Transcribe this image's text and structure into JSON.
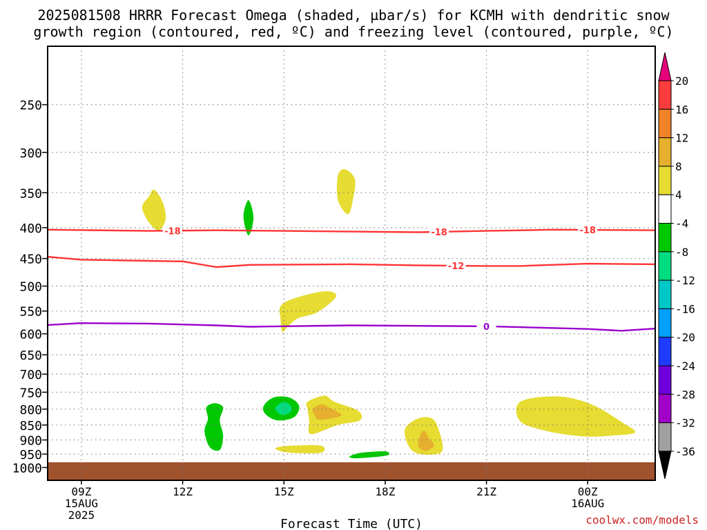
{
  "title_line1": "2025081508 HRRR Forecast Omega (shaded, µbar/s) for KCMH with dendritic snow",
  "title_line2": "growth region (contoured, red, ºC) and freezing level (contoured, purple, ºC)",
  "credit": "coolwx.com/models",
  "chart_data": {
    "type": "contour",
    "title": "2025081508 HRRR Forecast Omega (shaded, µbar/s) for KCMH with dendritic snow growth region (contoured, red, ºC) and freezing level (contoured, purple, ºC)",
    "xlabel": "Forecast Time (UTC)",
    "ylabel": "",
    "x_range_hours_from_09Z_15AUG": [
      -1.0,
      17.0
    ],
    "y_log_pressure": true,
    "y_range_hPa": [
      1050,
      200
    ],
    "y_ticks": [
      250,
      300,
      350,
      400,
      450,
      500,
      550,
      600,
      650,
      700,
      750,
      800,
      850,
      900,
      950,
      1000
    ],
    "x_ticks": [
      {
        "t": 0,
        "line1": "09Z",
        "line2": "15AUG",
        "line3": "2025"
      },
      {
        "t": 3,
        "line1": "12Z",
        "line2": "",
        "line3": ""
      },
      {
        "t": 6,
        "line1": "15Z",
        "line2": "",
        "line3": ""
      },
      {
        "t": 9,
        "line1": "18Z",
        "line2": "",
        "line3": ""
      },
      {
        "t": 12,
        "line1": "21Z",
        "line2": "",
        "line3": ""
      },
      {
        "t": 15,
        "line1": "00Z",
        "line2": "16AUG",
        "line3": ""
      }
    ],
    "grid": true,
    "ground_below_hPa": 980,
    "colorbar": {
      "levels": [
        -36,
        -32,
        -28,
        -24,
        -20,
        -16,
        -12,
        -8,
        -4,
        4,
        8,
        12,
        16,
        20
      ],
      "colors": [
        "#000000",
        "#a0a0a0",
        "#a000c8",
        "#6e00dc",
        "#1e3cff",
        "#00a0ff",
        "#00c8c8",
        "#00dc82",
        "#00c800",
        "#ffffff",
        "#e6dc32",
        "#e6af2d",
        "#f08228",
        "#fa3c3c",
        "#e6007a"
      ]
    },
    "contour_lines": [
      {
        "name": "-18",
        "color": "#ff3333",
        "label_at": [
          [
            2.7,
            -18
          ],
          [
            10.6,
            -18
          ],
          [
            15.0,
            -18
          ]
        ],
        "points": [
          [
            -1,
            403
          ],
          [
            2,
            405
          ],
          [
            4,
            404
          ],
          [
            6,
            405
          ],
          [
            8,
            406
          ],
          [
            10,
            407
          ],
          [
            12,
            405
          ],
          [
            14,
            403
          ],
          [
            17,
            404
          ]
        ]
      },
      {
        "name": "-12",
        "color": "#ff3333",
        "label_at": [
          [
            11.1,
            -12
          ]
        ],
        "points": [
          [
            -1,
            447
          ],
          [
            0,
            452
          ],
          [
            2,
            454
          ],
          [
            3,
            455
          ],
          [
            4,
            465
          ],
          [
            5,
            461
          ],
          [
            8,
            460
          ],
          [
            10,
            462
          ],
          [
            12,
            463
          ],
          [
            13,
            463
          ],
          [
            15,
            459
          ],
          [
            17,
            460
          ]
        ]
      },
      {
        "name": "0",
        "color": "#9900cc",
        "label_at": [
          [
            12.0,
            0
          ]
        ],
        "points": [
          [
            -1,
            580
          ],
          [
            0,
            576
          ],
          [
            2,
            577
          ],
          [
            4,
            581
          ],
          [
            5,
            584
          ],
          [
            6,
            583
          ],
          [
            8,
            581
          ],
          [
            10,
            582
          ],
          [
            12,
            583
          ],
          [
            15,
            589
          ],
          [
            16,
            593
          ],
          [
            17,
            588
          ]
        ]
      }
    ],
    "omega_regions": [
      {
        "value": 6,
        "points": [
          [
            2.0,
            355
          ],
          [
            1.8,
            370
          ],
          [
            2.0,
            392
          ],
          [
            2.3,
            404
          ],
          [
            2.5,
            386
          ],
          [
            2.4,
            362
          ],
          [
            2.15,
            346
          ]
        ]
      },
      {
        "value": -6,
        "points": [
          [
            4.95,
            360
          ],
          [
            4.8,
            383
          ],
          [
            4.95,
            412
          ],
          [
            5.1,
            385
          ]
        ]
      },
      {
        "value": 6,
        "points": [
          [
            7.6,
            328
          ],
          [
            7.8,
            320
          ],
          [
            8.1,
            332
          ],
          [
            8.05,
            358
          ],
          [
            7.9,
            380
          ],
          [
            7.6,
            360
          ]
        ]
      },
      {
        "value": 6,
        "points": [
          [
            5.9,
            540
          ],
          [
            6.3,
            524
          ],
          [
            7.2,
            510
          ],
          [
            7.55,
            520
          ],
          [
            7.0,
            552
          ],
          [
            6.4,
            566
          ],
          [
            6.1,
            585
          ],
          [
            5.95,
            595
          ],
          [
            5.9,
            565
          ]
        ]
      },
      {
        "value": 6,
        "points": [
          [
            5.8,
            926
          ],
          [
            6.2,
            920
          ],
          [
            7.1,
            920
          ],
          [
            7.1,
            945
          ],
          [
            6.2,
            945
          ],
          [
            5.8,
            935
          ]
        ]
      },
      {
        "value": -6,
        "points": [
          [
            3.7,
            795
          ],
          [
            3.95,
            782
          ],
          [
            4.2,
            795
          ],
          [
            4.1,
            835
          ],
          [
            4.2,
            885
          ],
          [
            4.1,
            935
          ],
          [
            3.8,
            925
          ],
          [
            3.65,
            870
          ],
          [
            3.75,
            830
          ]
        ]
      },
      {
        "value": -6,
        "points": [
          [
            5.4,
            790
          ],
          [
            5.7,
            765
          ],
          [
            6.15,
            765
          ],
          [
            6.45,
            790
          ],
          [
            6.3,
            825
          ],
          [
            5.8,
            835
          ],
          [
            5.45,
            815
          ]
        ]
      },
      {
        "value": -11,
        "points": [
          [
            5.8,
            790
          ],
          [
            6.0,
            778
          ],
          [
            6.2,
            790
          ],
          [
            6.2,
            808
          ],
          [
            5.95,
            818
          ],
          [
            5.75,
            802
          ]
        ]
      },
      {
        "value": 6,
        "points": [
          [
            6.7,
            778
          ],
          [
            7.2,
            760
          ],
          [
            7.5,
            778
          ],
          [
            8.2,
            805
          ],
          [
            8.25,
            835
          ],
          [
            7.6,
            850
          ],
          [
            6.8,
            880
          ],
          [
            6.75,
            835
          ],
          [
            6.7,
            800
          ]
        ]
      },
      {
        "value": 10,
        "points": [
          [
            6.85,
            800
          ],
          [
            7.1,
            785
          ],
          [
            7.3,
            793
          ],
          [
            7.7,
            818
          ],
          [
            7.35,
            830
          ],
          [
            7.0,
            832
          ],
          [
            6.9,
            815
          ]
        ]
      },
      {
        "value": 6,
        "points": [
          [
            9.6,
            860
          ],
          [
            10.0,
            828
          ],
          [
            10.4,
            830
          ],
          [
            10.6,
            870
          ],
          [
            10.7,
            935
          ],
          [
            10.4,
            952
          ],
          [
            9.9,
            945
          ],
          [
            9.65,
            910
          ]
        ]
      },
      {
        "value": 10,
        "points": [
          [
            10.0,
            895
          ],
          [
            10.15,
            868
          ],
          [
            10.3,
            895
          ],
          [
            10.45,
            920
          ],
          [
            10.2,
            938
          ],
          [
            10.0,
            925
          ]
        ]
      },
      {
        "value": -6,
        "points": [
          [
            8.0,
            955
          ],
          [
            8.3,
            945
          ],
          [
            9.0,
            940
          ],
          [
            9.05,
            955
          ],
          [
            8.2,
            965
          ],
          [
            7.95,
            962
          ]
        ]
      },
      {
        "value": 6,
        "points": [
          [
            13.0,
            778
          ],
          [
            14.1,
            762
          ],
          [
            15.1,
            785
          ],
          [
            16.0,
            840
          ],
          [
            16.4,
            875
          ],
          [
            15.7,
            885
          ],
          [
            14.9,
            888
          ],
          [
            13.8,
            870
          ],
          [
            13.0,
            838
          ]
        ]
      }
    ]
  }
}
